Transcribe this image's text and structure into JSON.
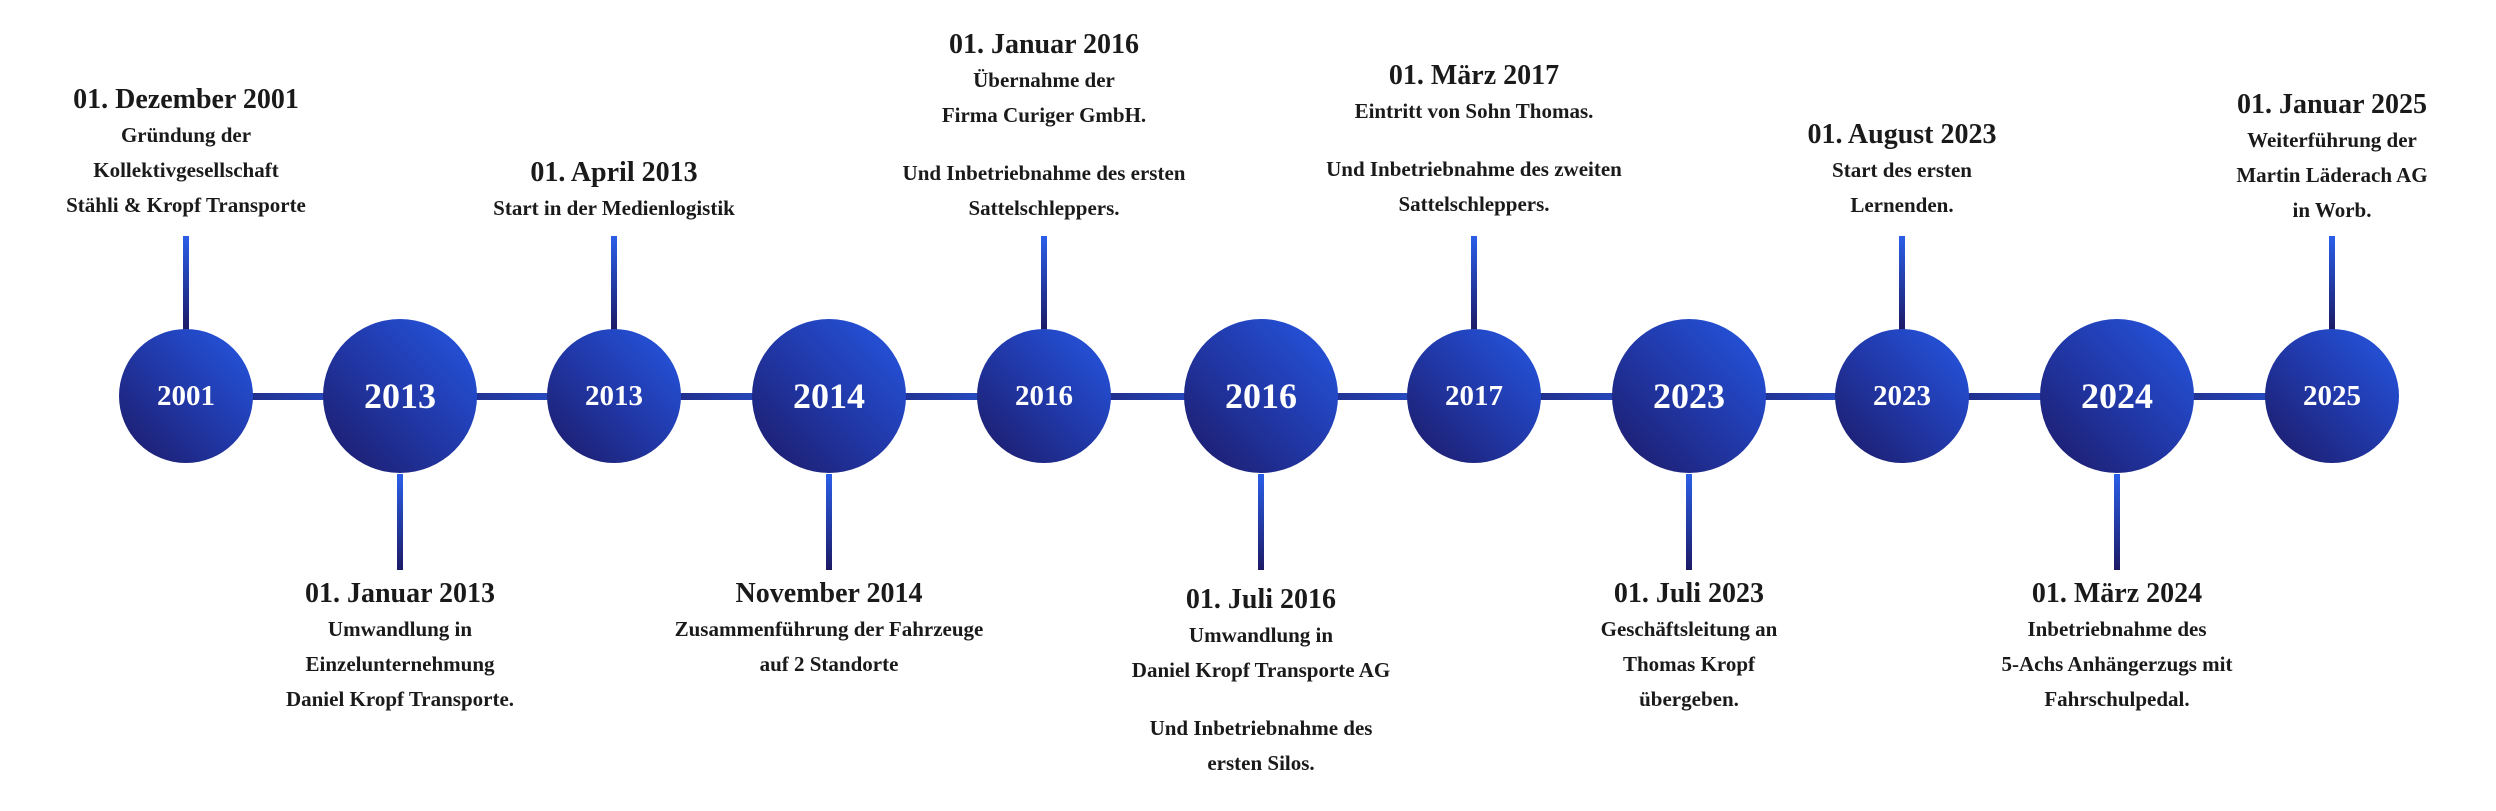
{
  "colors": {
    "circle_light": "#2558e4",
    "circle_dark": "#1c1a66",
    "text": "#1a1a1a"
  },
  "events": [
    {
      "year": "2001",
      "position": "above",
      "date": "01. Dezember 2001",
      "paragraphs": [
        [
          "Gründung der",
          "Kollektivgesellschaft",
          "Stähli & Kropf Transporte"
        ]
      ]
    },
    {
      "year": "2013",
      "position": "below",
      "date": "01. Januar 2013",
      "paragraphs": [
        [
          "Umwandlung in",
          "Einzelunternehmung",
          "Daniel Kropf Transporte."
        ]
      ]
    },
    {
      "year": "2013",
      "position": "above",
      "date": "01. April 2013",
      "paragraphs": [
        [
          "Start in der Medienlogistik"
        ]
      ]
    },
    {
      "year": "2014",
      "position": "below",
      "date": "November 2014",
      "paragraphs": [
        [
          "Zusammenführung der Fahrzeuge",
          "auf 2 Standorte"
        ]
      ]
    },
    {
      "year": "2016",
      "position": "above",
      "date": "01. Januar 2016",
      "paragraphs": [
        [
          "Übernahme der",
          "Firma Curiger GmbH."
        ],
        [
          "Und Inbetriebnahme des ersten",
          "Sattelschleppers."
        ]
      ]
    },
    {
      "year": "2016",
      "position": "below",
      "date": "01. Juli 2016",
      "paragraphs": [
        [
          "Umwandlung in",
          "Daniel Kropf Transporte AG"
        ],
        [
          "Und Inbetriebnahme des",
          "ersten Silos."
        ]
      ]
    },
    {
      "year": "2017",
      "position": "above",
      "date": "01. März 2017",
      "paragraphs": [
        [
          "Eintritt von Sohn Thomas."
        ],
        [
          "Und Inbetriebnahme des zweiten",
          "Sattelschleppers."
        ]
      ]
    },
    {
      "year": "2023",
      "position": "below",
      "date": "01. Juli 2023",
      "paragraphs": [
        [
          "Geschäftsleitung an",
          "Thomas Kropf",
          "übergeben."
        ]
      ]
    },
    {
      "year": "2023",
      "position": "above",
      "date": "01. August 2023",
      "paragraphs": [
        [
          "Start des ersten",
          "Lernenden."
        ]
      ]
    },
    {
      "year": "2024",
      "position": "below",
      "date": "01. März 2024",
      "paragraphs": [
        [
          "Inbetriebnahme des",
          "5-Achs Anhängerzugs mit",
          "Fahrschulpedal."
        ]
      ]
    },
    {
      "year": "2025",
      "position": "above",
      "date": "01. Januar 2025",
      "paragraphs": [
        [
          "Weiterführung der",
          "Martin Läderach AG",
          "in Worb."
        ]
      ]
    }
  ]
}
